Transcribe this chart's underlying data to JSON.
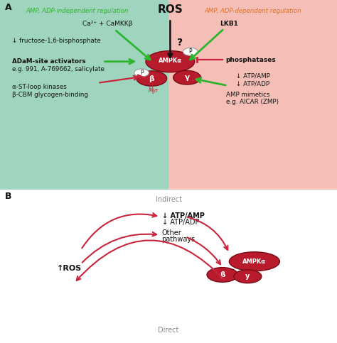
{
  "bg_color_left": "#9fd4be",
  "bg_color_right": "#f5bfb8",
  "green_arrow_color": "#2db52d",
  "red_arrow_color": "#c8243c",
  "dark_red": "#7a0a14",
  "ampk_red": "#b81c2c",
  "black": "#111111",
  "orange_title": "#e07020",
  "green_title": "#2db52d",
  "panel_a_label": "A",
  "panel_b_label": "B",
  "left_title": "AMP, ADP-independent regulation",
  "right_title": "AMP, ADP-dependent regulation",
  "ros_label": "ROS",
  "question_mark": "?",
  "lkb1_label": "LKB1",
  "ca_label": "Ca²⁺ + CaMKKβ",
  "fructose_label": "↓ fructose-1,6-bisphosphate",
  "adam_label1": "ADaM-site activators",
  "adam_label2": "e.g. 991, A-769662, salicylate",
  "alpha_label1": "α-ST-loop kinases",
  "alpha_label2": "β-CBM glycogen-binding",
  "phosphatases_label": "phosphatases",
  "atp_amp_label1": "↓ ATP/AMP",
  "atp_amp_label2": "↓ ATP/ADP",
  "amp_mimetics_label1": "AMP mimetics",
  "amp_mimetics_label2": "e.g. AICAR (ZMP)",
  "indirect_label": "Indirect",
  "direct_label": "Direct",
  "atp_b1": "↓ ATP/AMP",
  "atp_b2": "↓ ATP/ADP",
  "other_b": "Other",
  "pathways_b": "pathways",
  "ros_b_label": "↑ROS",
  "ampka_label": "AMPKα",
  "beta_label": "β",
  "gamma_label": "γ",
  "beta_label_b": "β",
  "gamma_label_b": "y",
  "p_label": "P",
  "myr_label": "Myr"
}
